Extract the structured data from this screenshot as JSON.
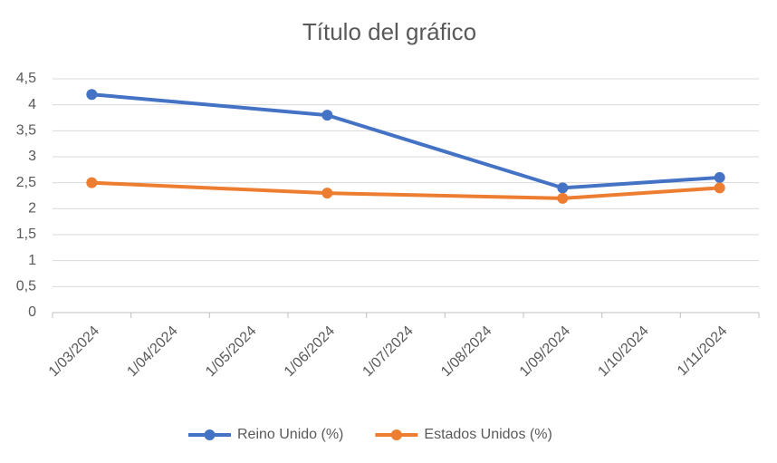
{
  "chart_data": {
    "type": "line",
    "title": "Título del gráfico",
    "x": [
      "1/03/2024",
      "1/06/2024",
      "1/09/2024",
      "1/11/2024"
    ],
    "xticks": [
      "1/03/2024",
      "1/04/2024",
      "1/05/2024",
      "1/06/2024",
      "1/07/2024",
      "1/08/2024",
      "1/09/2024",
      "1/10/2024",
      "1/11/2024"
    ],
    "series": [
      {
        "name": "Reino Unido (%)",
        "color": "#4472c4",
        "values": [
          4.2,
          3.8,
          2.4,
          2.6
        ]
      },
      {
        "name": "Estados Unidos (%)",
        "color": "#ed7d31",
        "values": [
          2.5,
          2.3,
          2.2,
          2.4
        ]
      }
    ],
    "ylim": [
      0,
      4.5
    ],
    "yticks": [
      0,
      {
        "value": 0.5,
        "label": "0,5"
      },
      1,
      {
        "value": 1.5,
        "label": "1,5"
      },
      2,
      {
        "value": 2.5,
        "label": "2,5"
      },
      3,
      {
        "value": 3.5,
        "label": "3,5"
      },
      4,
      {
        "value": 4.5,
        "label": "4,5"
      }
    ],
    "grid": true,
    "legend": "bottom"
  }
}
